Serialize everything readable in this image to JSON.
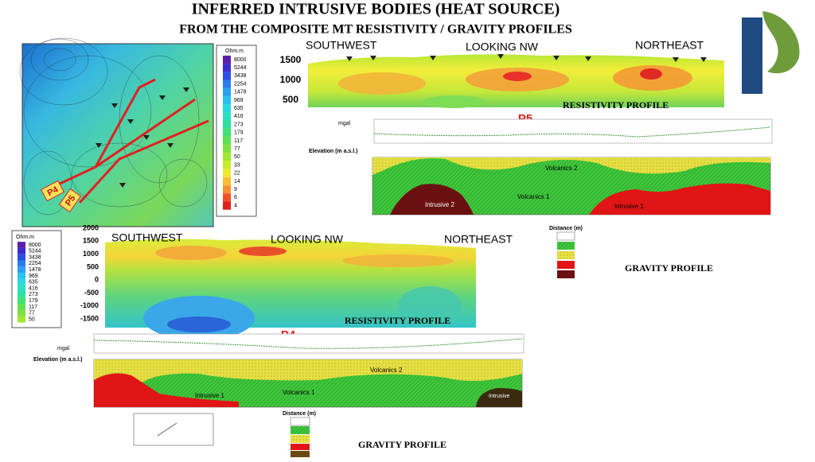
{
  "title": {
    "line1": "INFERRED INTRUSIVE BODIES (HEAT SOURCE)",
    "line2": "FROM THE COMPOSITE MT RESISTIVITY / GRAVITY PROFILES"
  },
  "map": {
    "labels": [
      "P4",
      "P5"
    ]
  },
  "legend_top": {
    "unit": "Ohm.m",
    "values": [
      "8000",
      "5244",
      "3438",
      "2254",
      "1478",
      "969",
      "635",
      "416",
      "273",
      "179",
      "117",
      "77",
      "50",
      "33",
      "22",
      "14",
      "9",
      "6",
      "4"
    ]
  },
  "legend_left": {
    "unit": "Ohm.m",
    "values": [
      "8000",
      "5244",
      "3438",
      "2254",
      "1478",
      "969",
      "635",
      "416",
      "273",
      "179",
      "117",
      "77",
      "50"
    ]
  },
  "profile_p5": {
    "label": "P5",
    "directions": [
      "SOUTHWEST",
      "LOOKING NW",
      "NORTHEAST"
    ],
    "yticks": [
      "1500",
      "1000",
      "500"
    ],
    "resistivity_caption": "RESISTIVITY PROFILE",
    "gravity": {
      "y_unit": "mgal",
      "elevation_label": "Elevation (m a.s.l.)",
      "units": [
        "Volcanics 2",
        "Volcanics 1",
        "Intrusive 2",
        "Intrusive 1"
      ],
      "distance_label": "Distance (m)"
    },
    "gravity_caption": "GRAVITY PROFILE"
  },
  "profile_p4": {
    "label": "P4",
    "directions": [
      "SOUTHWEST",
      "LOOKING NW",
      "NORTHEAST"
    ],
    "yticks": [
      "2000",
      "1500",
      "1000",
      "500",
      "0",
      "-500",
      "-1000",
      "-1500"
    ],
    "resistivity_caption": "RESISTIVITY PROFILE",
    "gravity": {
      "y_unit": "mgal",
      "elevation_label": "Elevation (m a.s.l.)",
      "units": [
        "Volcanics 2",
        "Intrusive 1",
        "Volcanics 1",
        "Intrusive"
      ],
      "distance_label": "Distance (m)"
    },
    "gravity_caption": "GRAVITY PROFILE"
  }
}
